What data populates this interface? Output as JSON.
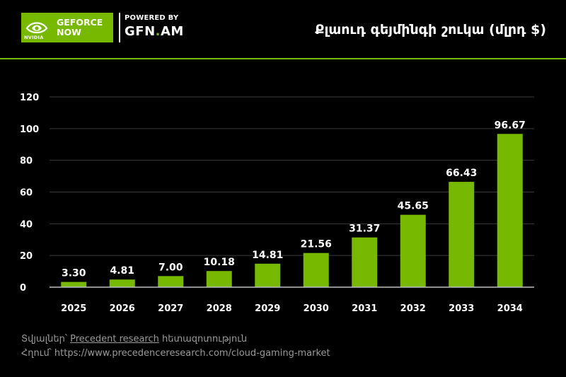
{
  "brand": {
    "logo_line1": "GEFORCE",
    "logo_line2": "NOW",
    "logo_small": "NVIDIA",
    "powered_by": "POWERED BY",
    "gfn_part1": "GFN",
    "gfn_dot": ".",
    "gfn_part2": "AM",
    "accent_color": "#76b900",
    "logo_icon": "nvidia-eye-icon"
  },
  "chart_data": {
    "type": "bar",
    "title": "Քլաուդ գեյմինգի շուկա (մլրդ $)",
    "categories": [
      "2025",
      "2026",
      "2027",
      "2028",
      "2029",
      "2030",
      "2031",
      "2032",
      "2033",
      "2034"
    ],
    "values": [
      3.3,
      4.81,
      7.0,
      10.18,
      14.81,
      21.56,
      31.37,
      45.65,
      66.43,
      96.67
    ],
    "value_labels": [
      "3.30",
      "4.81",
      "7.00",
      "10.18",
      "14.81",
      "21.56",
      "31.37",
      "45.65",
      "66.43",
      "96.67"
    ],
    "ylim": [
      0,
      120
    ],
    "yticks": [
      0,
      20,
      40,
      60,
      80,
      100,
      120
    ],
    "grid": true,
    "bar_color": "#76b900"
  },
  "footer": {
    "source_prefix": "Տվյալներ՝ ",
    "source_link": "Precedent research",
    "source_suffix": " հետազոտություն",
    "link_prefix": "Հղում՝ ",
    "link_url": "https://www.precedenceresearch.com/cloud-gaming-market"
  }
}
